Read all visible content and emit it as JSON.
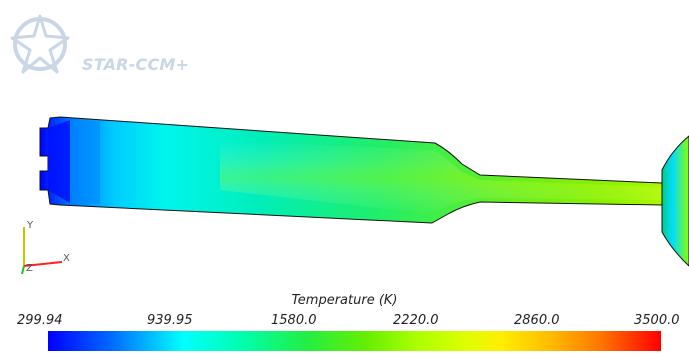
{
  "logo": {
    "text": "STAR-CCM+",
    "color": "#c9d6e6"
  },
  "axes": {
    "x_label": "X",
    "y_label": "Y",
    "z_label": "Z",
    "x_color": "#ff2020",
    "y_color": "#c8c800",
    "z_color": "#20c020"
  },
  "legend": {
    "title": "Temperature (K)",
    "ticks": [
      "299.94",
      "939.95",
      "1580.0",
      "2220.0",
      "2860.0",
      "3500.0"
    ],
    "min": 299.94,
    "max": 3500.0
  },
  "colors": {
    "cold": "#0000ff",
    "mid": "#00ffaa",
    "hot": "#ff0000"
  }
}
